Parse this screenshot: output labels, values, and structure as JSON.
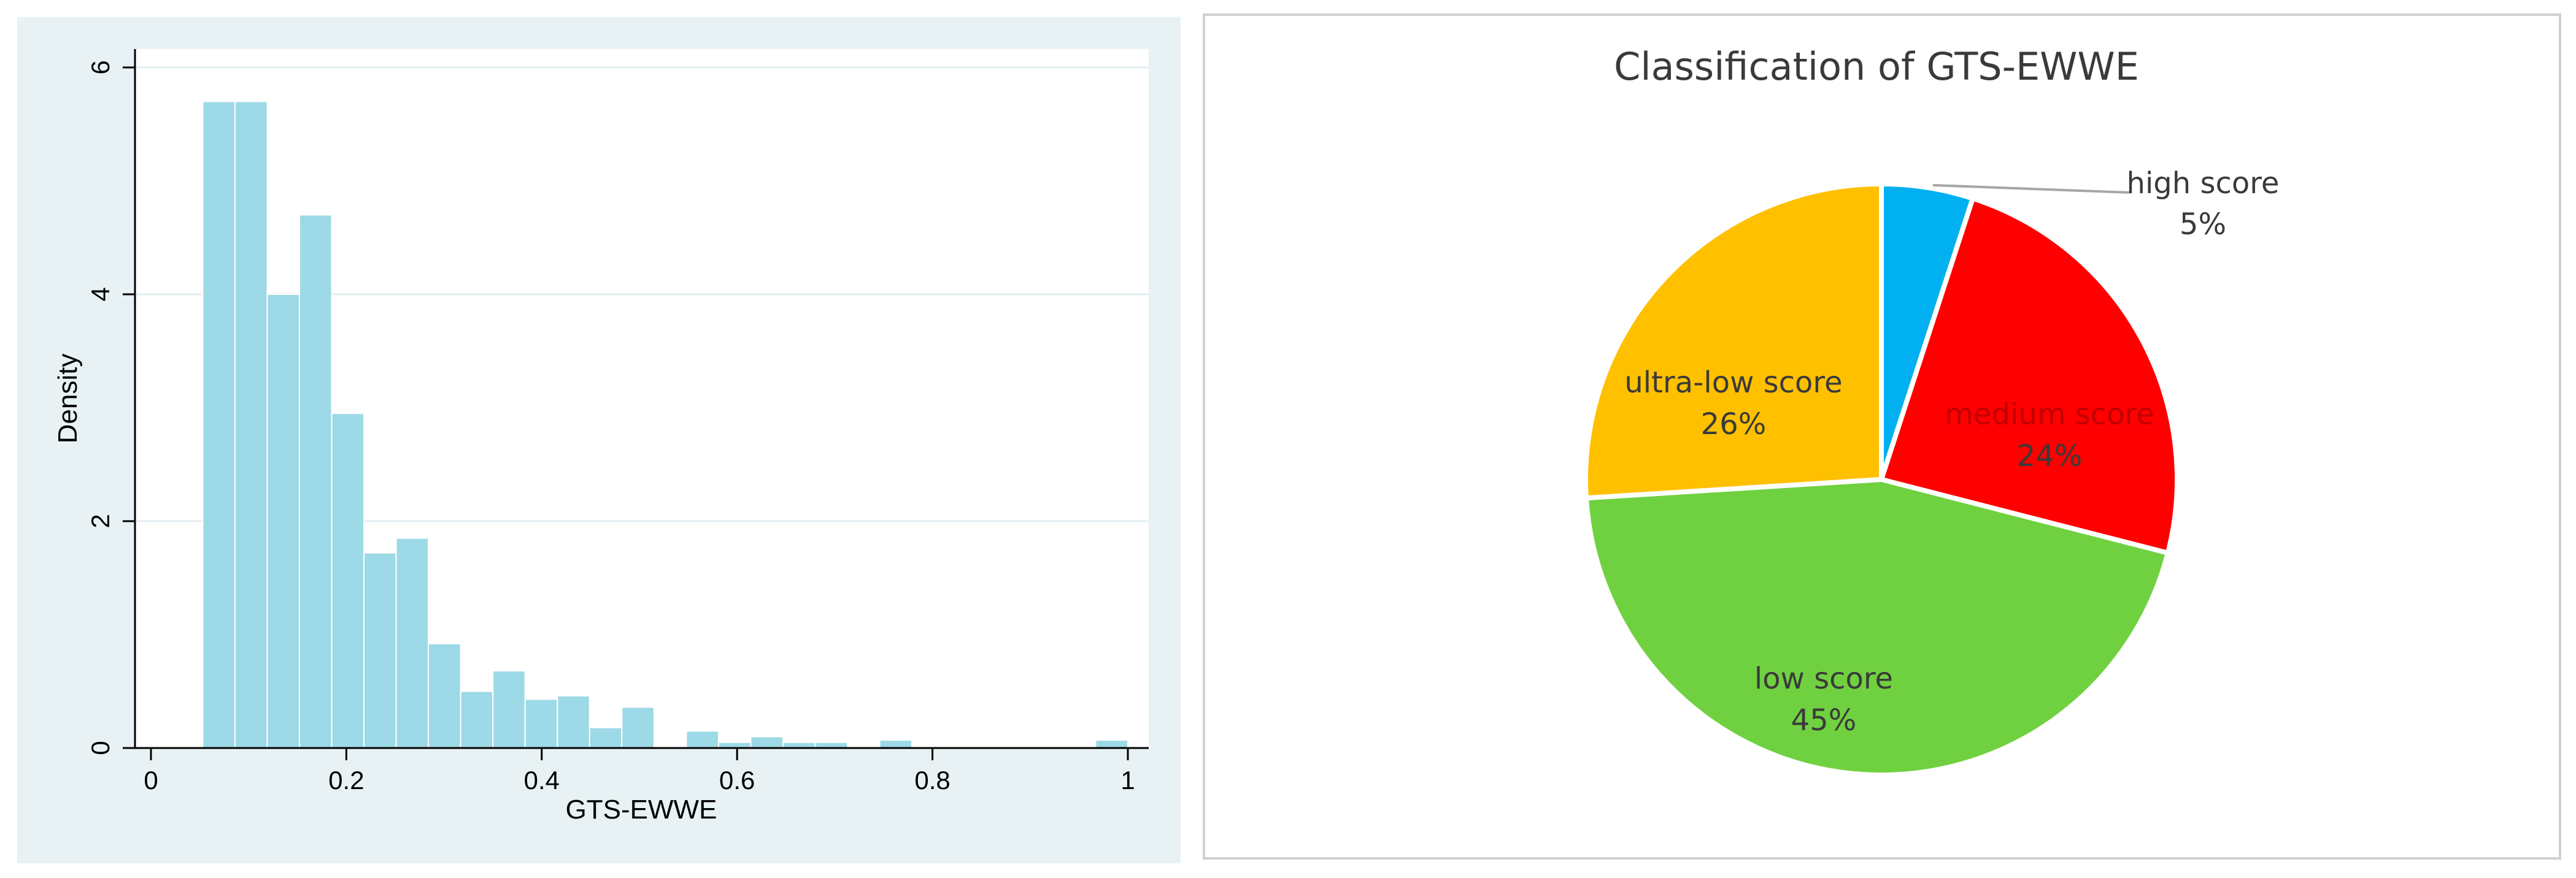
{
  "chart_data": [
    {
      "type": "bar",
      "xlabel": "GTS-EWWE",
      "ylabel": "Density",
      "xlim": [
        0,
        1
      ],
      "ylim": [
        0,
        6
      ],
      "xticks": [
        "0",
        "0.2",
        "0.4",
        "0.6",
        "0.8",
        "1"
      ],
      "yticks": [
        "0",
        "2",
        "4",
        "6"
      ],
      "grid": true,
      "bar_color": "#9dd9e6",
      "background_color": "#e8f2f4",
      "bins": [
        {
          "x0": 0.053,
          "x1": 0.086,
          "y": 5.7
        },
        {
          "x0": 0.086,
          "x1": 0.119,
          "y": 5.7
        },
        {
          "x0": 0.119,
          "x1": 0.152,
          "y": 4.0
        },
        {
          "x0": 0.152,
          "x1": 0.185,
          "y": 4.7
        },
        {
          "x0": 0.185,
          "x1": 0.218,
          "y": 2.95
        },
        {
          "x0": 0.218,
          "x1": 0.251,
          "y": 1.72
        },
        {
          "x0": 0.251,
          "x1": 0.284,
          "y": 1.85
        },
        {
          "x0": 0.284,
          "x1": 0.317,
          "y": 0.92
        },
        {
          "x0": 0.317,
          "x1": 0.35,
          "y": 0.5
        },
        {
          "x0": 0.35,
          "x1": 0.383,
          "y": 0.68
        },
        {
          "x0": 0.383,
          "x1": 0.416,
          "y": 0.43
        },
        {
          "x0": 0.416,
          "x1": 0.449,
          "y": 0.46
        },
        {
          "x0": 0.449,
          "x1": 0.482,
          "y": 0.18
        },
        {
          "x0": 0.482,
          "x1": 0.515,
          "y": 0.36
        },
        {
          "x0": 0.548,
          "x1": 0.581,
          "y": 0.15
        },
        {
          "x0": 0.581,
          "x1": 0.614,
          "y": 0.05
        },
        {
          "x0": 0.614,
          "x1": 0.647,
          "y": 0.1
        },
        {
          "x0": 0.647,
          "x1": 0.68,
          "y": 0.05
        },
        {
          "x0": 0.68,
          "x1": 0.713,
          "y": 0.05
        },
        {
          "x0": 0.746,
          "x1": 0.779,
          "y": 0.07
        },
        {
          "x0": 0.967,
          "x1": 1.0,
          "y": 0.07
        }
      ]
    },
    {
      "type": "pie",
      "title": "Classification of GTS-EWWE",
      "slices": [
        {
          "label": "high score",
          "value": 5,
          "value_label": "5%",
          "color": "#00b0f0"
        },
        {
          "label": "medium score",
          "value": 24,
          "value_label": "24%",
          "color": "#ff0000"
        },
        {
          "label": "low score",
          "value": 45,
          "value_label": "45%",
          "color": "#70d140"
        },
        {
          "label": "ultra-low score",
          "value": 26,
          "value_label": "26%",
          "color": "#ffc000"
        }
      ]
    }
  ]
}
